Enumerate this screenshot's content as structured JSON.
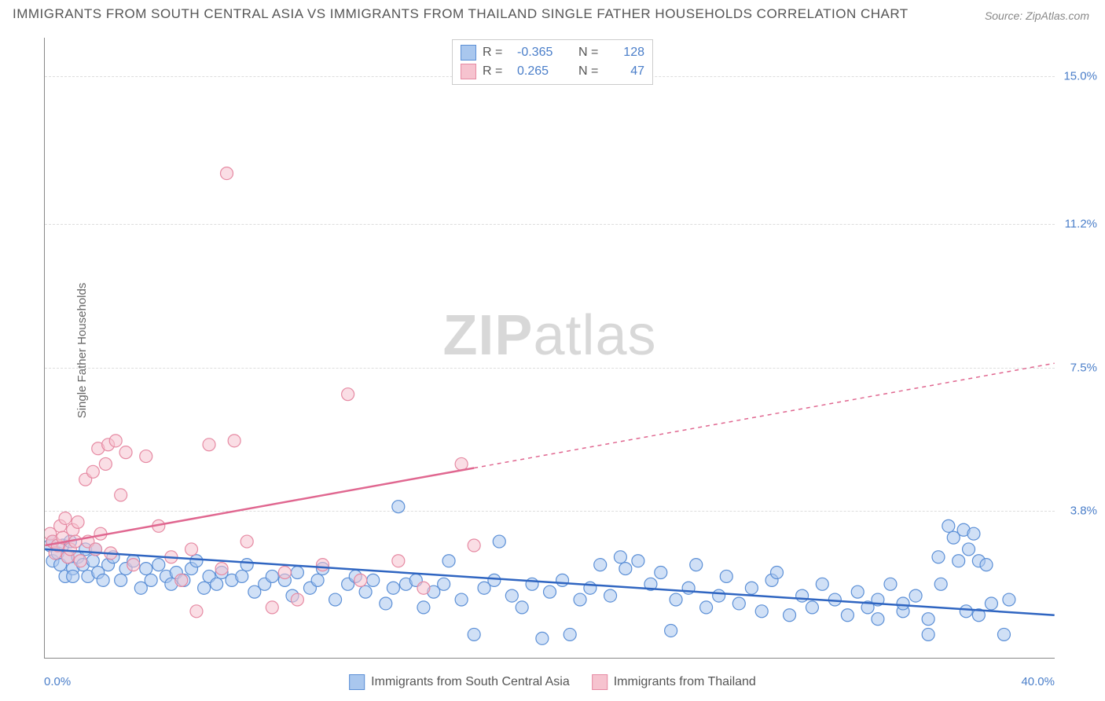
{
  "title": "IMMIGRANTS FROM SOUTH CENTRAL ASIA VS IMMIGRANTS FROM THAILAND SINGLE FATHER HOUSEHOLDS CORRELATION CHART",
  "source": "Source: ZipAtlas.com",
  "ylabel": "Single Father Households",
  "watermark_bold": "ZIP",
  "watermark_light": "atlas",
  "chart": {
    "type": "scatter",
    "xlim": [
      0.0,
      40.0
    ],
    "ylim": [
      0.0,
      16.0
    ],
    "xtick_labels": {
      "min": "0.0%",
      "max": "40.0%"
    },
    "yticks": [
      {
        "value": 3.8,
        "label": "3.8%"
      },
      {
        "value": 7.5,
        "label": "7.5%"
      },
      {
        "value": 11.2,
        "label": "11.2%"
      },
      {
        "value": 15.0,
        "label": "15.0%"
      }
    ],
    "grid_color": "#dddddd",
    "axis_color": "#888888",
    "background_color": "#ffffff",
    "tick_label_color": "#4a7ec9",
    "marker_radius": 8,
    "marker_opacity": 0.55,
    "trend_line_width": 2.5,
    "series": [
      {
        "name": "Immigrants from South Central Asia",
        "color_fill": "#a9c7ee",
        "color_stroke": "#5b8fd6",
        "trend_color": "#2f65c1",
        "R": "-0.365",
        "N": "128",
        "trend": {
          "x1": 0.0,
          "y1": 2.8,
          "x2": 40.0,
          "y2": 1.1
        },
        "dashed_from_x": 40.0,
        "points": [
          [
            0.2,
            2.9
          ],
          [
            0.3,
            2.5
          ],
          [
            0.3,
            3.0
          ],
          [
            0.5,
            2.7
          ],
          [
            0.6,
            2.4
          ],
          [
            0.7,
            2.9
          ],
          [
            0.8,
            2.1
          ],
          [
            0.9,
            2.6
          ],
          [
            1.0,
            3.0
          ],
          [
            1.1,
            2.3
          ],
          [
            1.1,
            2.1
          ],
          [
            1.3,
            2.6
          ],
          [
            1.5,
            2.4
          ],
          [
            1.6,
            2.8
          ],
          [
            1.7,
            2.1
          ],
          [
            1.9,
            2.5
          ],
          [
            2.0,
            2.8
          ],
          [
            2.1,
            2.2
          ],
          [
            2.3,
            2.0
          ],
          [
            2.5,
            2.4
          ],
          [
            2.7,
            2.6
          ],
          [
            3.0,
            2.0
          ],
          [
            3.2,
            2.3
          ],
          [
            3.5,
            2.5
          ],
          [
            3.8,
            1.8
          ],
          [
            4.0,
            2.3
          ],
          [
            4.2,
            2.0
          ],
          [
            4.5,
            2.4
          ],
          [
            4.8,
            2.1
          ],
          [
            5.0,
            1.9
          ],
          [
            5.2,
            2.2
          ],
          [
            5.5,
            2.0
          ],
          [
            5.8,
            2.3
          ],
          [
            6.0,
            2.5
          ],
          [
            6.3,
            1.8
          ],
          [
            6.5,
            2.1
          ],
          [
            6.8,
            1.9
          ],
          [
            7.0,
            2.2
          ],
          [
            7.4,
            2.0
          ],
          [
            7.8,
            2.1
          ],
          [
            8.0,
            2.4
          ],
          [
            8.3,
            1.7
          ],
          [
            8.7,
            1.9
          ],
          [
            9.0,
            2.1
          ],
          [
            9.5,
            2.0
          ],
          [
            9.8,
            1.6
          ],
          [
            10.0,
            2.2
          ],
          [
            10.5,
            1.8
          ],
          [
            10.8,
            2.0
          ],
          [
            11.0,
            2.3
          ],
          [
            11.5,
            1.5
          ],
          [
            12.0,
            1.9
          ],
          [
            12.3,
            2.1
          ],
          [
            12.7,
            1.7
          ],
          [
            13.0,
            2.0
          ],
          [
            13.5,
            1.4
          ],
          [
            13.8,
            1.8
          ],
          [
            14.0,
            3.9
          ],
          [
            14.3,
            1.9
          ],
          [
            14.7,
            2.0
          ],
          [
            15.0,
            1.3
          ],
          [
            15.4,
            1.7
          ],
          [
            15.8,
            1.9
          ],
          [
            16.0,
            2.5
          ],
          [
            16.5,
            1.5
          ],
          [
            17.0,
            0.6
          ],
          [
            17.4,
            1.8
          ],
          [
            17.8,
            2.0
          ],
          [
            18.0,
            3.0
          ],
          [
            18.5,
            1.6
          ],
          [
            18.9,
            1.3
          ],
          [
            19.3,
            1.9
          ],
          [
            19.7,
            0.5
          ],
          [
            20.0,
            1.7
          ],
          [
            20.5,
            2.0
          ],
          [
            20.8,
            0.6
          ],
          [
            21.2,
            1.5
          ],
          [
            21.6,
            1.8
          ],
          [
            22.0,
            2.4
          ],
          [
            22.4,
            1.6
          ],
          [
            22.8,
            2.6
          ],
          [
            23.0,
            2.3
          ],
          [
            23.5,
            2.5
          ],
          [
            24.0,
            1.9
          ],
          [
            24.4,
            2.2
          ],
          [
            24.8,
            0.7
          ],
          [
            25.0,
            1.5
          ],
          [
            25.5,
            1.8
          ],
          [
            25.8,
            2.4
          ],
          [
            26.2,
            1.3
          ],
          [
            26.7,
            1.6
          ],
          [
            27.0,
            2.1
          ],
          [
            27.5,
            1.4
          ],
          [
            28.0,
            1.8
          ],
          [
            28.4,
            1.2
          ],
          [
            28.8,
            2.0
          ],
          [
            29.0,
            2.2
          ],
          [
            29.5,
            1.1
          ],
          [
            30.0,
            1.6
          ],
          [
            30.4,
            1.3
          ],
          [
            30.8,
            1.9
          ],
          [
            31.3,
            1.5
          ],
          [
            31.8,
            1.1
          ],
          [
            32.2,
            1.7
          ],
          [
            32.6,
            1.3
          ],
          [
            33.0,
            1.5
          ],
          [
            33.5,
            1.9
          ],
          [
            34.0,
            1.2
          ],
          [
            34.5,
            1.6
          ],
          [
            35.0,
            1.0
          ],
          [
            35.4,
            2.6
          ],
          [
            35.5,
            1.9
          ],
          [
            35.8,
            3.4
          ],
          [
            36.0,
            3.1
          ],
          [
            36.2,
            2.5
          ],
          [
            36.4,
            3.3
          ],
          [
            36.6,
            2.8
          ],
          [
            36.8,
            3.2
          ],
          [
            37.0,
            2.5
          ],
          [
            37.3,
            2.4
          ],
          [
            37.0,
            1.1
          ],
          [
            37.5,
            1.4
          ],
          [
            38.0,
            0.6
          ],
          [
            35.0,
            0.6
          ],
          [
            33.0,
            1.0
          ],
          [
            34.0,
            1.4
          ],
          [
            36.5,
            1.2
          ],
          [
            38.2,
            1.5
          ]
        ]
      },
      {
        "name": "Immigrants from Thailand",
        "color_fill": "#f6c3cf",
        "color_stroke": "#e68aa3",
        "trend_color": "#e06790",
        "R": "0.265",
        "N": "47",
        "trend": {
          "x1": 0.0,
          "y1": 2.9,
          "x2": 40.0,
          "y2": 7.6
        },
        "dashed_from_x": 17.0,
        "points": [
          [
            0.2,
            3.2
          ],
          [
            0.3,
            3.0
          ],
          [
            0.4,
            2.7
          ],
          [
            0.5,
            2.9
          ],
          [
            0.6,
            3.4
          ],
          [
            0.7,
            3.1
          ],
          [
            0.8,
            3.6
          ],
          [
            0.9,
            2.6
          ],
          [
            1.0,
            2.8
          ],
          [
            1.1,
            3.3
          ],
          [
            1.2,
            3.0
          ],
          [
            1.3,
            3.5
          ],
          [
            1.4,
            2.5
          ],
          [
            1.6,
            4.6
          ],
          [
            1.7,
            3.0
          ],
          [
            1.9,
            4.8
          ],
          [
            2.0,
            2.8
          ],
          [
            2.1,
            5.4
          ],
          [
            2.2,
            3.2
          ],
          [
            2.4,
            5.0
          ],
          [
            2.5,
            5.5
          ],
          [
            2.6,
            2.7
          ],
          [
            2.8,
            5.6
          ],
          [
            3.0,
            4.2
          ],
          [
            3.2,
            5.3
          ],
          [
            3.5,
            2.4
          ],
          [
            4.0,
            5.2
          ],
          [
            4.5,
            3.4
          ],
          [
            5.0,
            2.6
          ],
          [
            5.4,
            2.0
          ],
          [
            5.8,
            2.8
          ],
          [
            6.0,
            1.2
          ],
          [
            6.5,
            5.5
          ],
          [
            7.0,
            2.3
          ],
          [
            7.2,
            12.5
          ],
          [
            7.5,
            5.6
          ],
          [
            8.0,
            3.0
          ],
          [
            9.0,
            1.3
          ],
          [
            9.5,
            2.2
          ],
          [
            10.0,
            1.5
          ],
          [
            11.0,
            2.4
          ],
          [
            12.0,
            6.8
          ],
          [
            12.5,
            2.0
          ],
          [
            14.0,
            2.5
          ],
          [
            15.0,
            1.8
          ],
          [
            16.5,
            5.0
          ],
          [
            17.0,
            2.9
          ]
        ]
      }
    ]
  },
  "legend_bottom": [
    {
      "label": "Immigrants from South Central Asia",
      "fill": "#a9c7ee",
      "stroke": "#5b8fd6"
    },
    {
      "label": "Immigrants from Thailand",
      "fill": "#f6c3cf",
      "stroke": "#e68aa3"
    }
  ]
}
